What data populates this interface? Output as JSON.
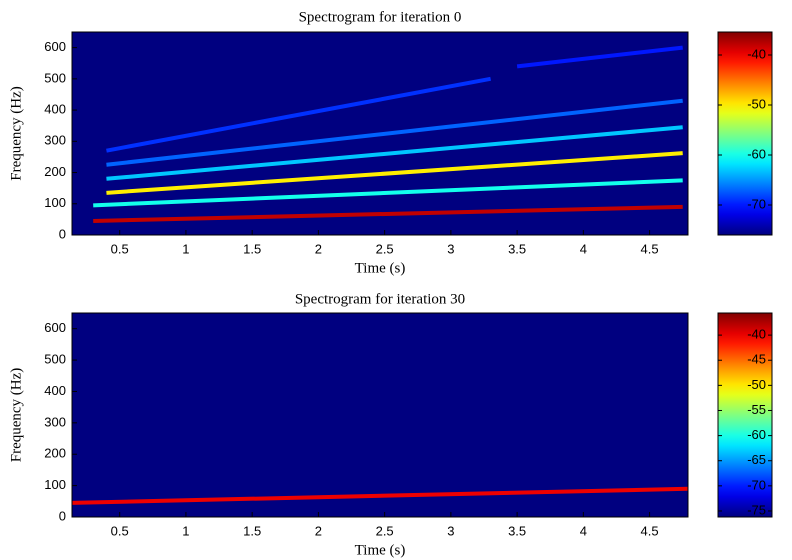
{
  "chart_data": [
    {
      "type": "spectrogram",
      "title": "Spectrogram for iteration 0",
      "xlabel": "Time (s)",
      "ylabel": "Frequency (Hz)",
      "xlim": [
        0.14,
        4.79
      ],
      "xticks": [
        0.5,
        1,
        1.5,
        2,
        2.5,
        3,
        3.5,
        4,
        4.5
      ],
      "ylim": [
        0,
        650
      ],
      "yticks": [
        0,
        100,
        200,
        300,
        400,
        500,
        600
      ],
      "clim": [
        -76,
        -35.4
      ],
      "cticks": [
        -70,
        -60,
        -50,
        -40
      ],
      "background": -76,
      "series": [
        {
          "x": [
            0.3,
            4.75
          ],
          "values": [
            45,
            90
          ],
          "level": -38
        },
        {
          "x": [
            0.3,
            4.75
          ],
          "values": [
            95,
            175
          ],
          "level": -60
        },
        {
          "x": [
            0.4,
            4.75
          ],
          "values": [
            135,
            262
          ],
          "level": -50
        },
        {
          "x": [
            0.4,
            4.75
          ],
          "values": [
            180,
            345
          ],
          "level": -63
        },
        {
          "x": [
            0.4,
            4.75
          ],
          "values": [
            225,
            430
          ],
          "level": -67
        },
        {
          "x": [
            0.4,
            3.3
          ],
          "values": [
            270,
            500
          ],
          "level": -69
        },
        {
          "x": [
            3.5,
            4.75
          ],
          "values": [
            540,
            600
          ],
          "level": -70
        }
      ]
    },
    {
      "type": "spectrogram",
      "title": "Spectrogram for iteration 30",
      "xlabel": "Time (s)",
      "ylabel": "Frequency (Hz)",
      "xlim": [
        0.14,
        4.79
      ],
      "xticks": [
        0.5,
        1,
        1.5,
        2,
        2.5,
        3,
        3.5,
        4,
        4.5
      ],
      "ylim": [
        0,
        650
      ],
      "yticks": [
        0,
        100,
        200,
        300,
        400,
        500,
        600
      ],
      "clim": [
        -76.2,
        -35.6
      ],
      "cticks": [
        -75,
        -70,
        -65,
        -60,
        -55,
        -50,
        -45,
        -40
      ],
      "background": -76.2,
      "series": [
        {
          "x": [
            0.14,
            4.79
          ],
          "values": [
            45,
            90
          ],
          "level": -40
        }
      ]
    }
  ]
}
